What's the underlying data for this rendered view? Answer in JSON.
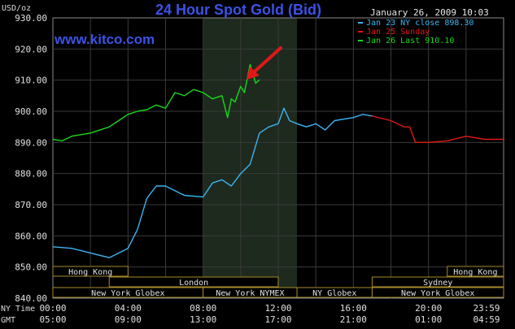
{
  "chart_data": {
    "type": "line",
    "title": "24 Hour Spot Gold (Bid)",
    "watermark": "www.kitco.com",
    "timestamp": "January 26, 2009 10:03",
    "ylabel": "USD/oz",
    "ylim": [
      840,
      930
    ],
    "y_ticks": [
      "930.00",
      "920.00",
      "910.00",
      "900.00",
      "890.00",
      "880.00",
      "870.00",
      "860.00",
      "850.00",
      "840.00"
    ],
    "x_rows": [
      {
        "label": "NY Time",
        "ticks": [
          "00:00",
          "04:00",
          "08:00",
          "12:00",
          "16:00",
          "20:00",
          "23:59"
        ]
      },
      {
        "label": "GMT",
        "ticks": [
          "05:00",
          "09:00",
          "13:00",
          "17:00",
          "21:00",
          "01:00",
          "04:59"
        ]
      }
    ],
    "legend": [
      {
        "text": "Jan 23 NY close 898.30",
        "color": "#3ab4f0"
      },
      {
        "text": "Jan 25 Sunday",
        "color": "#e01818"
      },
      {
        "text": "Jan 26 Last 910.10",
        "color": "#18d818"
      }
    ],
    "series": [
      {
        "name": "Jan 23 NY close 898.30",
        "color": "#3ab4f0",
        "x_hours": [
          0,
          1,
          2,
          3,
          4,
          4.5,
          5,
          5.5,
          6,
          7,
          8,
          8.5,
          9,
          9.5,
          10,
          10.5,
          11,
          11.5,
          12,
          12.3,
          12.6,
          13,
          13.5,
          14,
          14.5,
          15,
          16,
          16.5,
          17
        ],
        "values": [
          856.5,
          856,
          854.5,
          853,
          856,
          862,
          872,
          876,
          876,
          873,
          872.5,
          877,
          878,
          876,
          880,
          883,
          893,
          895,
          896,
          901,
          897,
          896,
          895,
          896,
          894,
          897,
          898,
          899,
          898.5
        ]
      },
      {
        "name": "Jan 25 Sunday",
        "color": "#e01818",
        "x_hours": [
          17,
          18,
          18.7,
          19,
          19.3,
          20,
          21,
          22,
          23,
          23.99
        ],
        "values": [
          898.5,
          897,
          895,
          895,
          890,
          890,
          890.5,
          892,
          891,
          891
        ]
      },
      {
        "name": "Jan 26 Last 910.10",
        "color": "#18d818",
        "x_hours": [
          0,
          0.5,
          1,
          2,
          3,
          3.5,
          4,
          4.5,
          5,
          5.5,
          6,
          6.5,
          7,
          7.5,
          8,
          8.5,
          9,
          9.3,
          9.5,
          9.7,
          10,
          10.2,
          10.5,
          10.8,
          11
        ],
        "values": [
          891,
          890.5,
          892,
          893,
          895,
          897,
          899,
          900,
          900.5,
          902,
          901,
          906,
          905,
          907,
          906,
          904,
          905,
          898,
          904,
          903,
          908,
          906,
          915,
          909,
          910.1
        ]
      }
    ],
    "highlight_x_hours": [
      8,
      13
    ],
    "sessions": [
      {
        "name": "Hong Kong",
        "start_hours": [
          0,
          21
        ]
      },
      {
        "name": "London",
        "start_hours": [
          3
        ]
      },
      {
        "name": "Sydney",
        "start_hours": [
          16.5
        ]
      },
      {
        "name": "New York Globex",
        "start_hours": [
          0,
          17
        ]
      },
      {
        "name": "New York NYMEX",
        "start_hours": [
          8.5
        ]
      },
      {
        "name": "NY Globex",
        "start_hours": [
          13.5
        ]
      }
    ],
    "session_bars": [
      {
        "label": "Hong Kong",
        "row": 1,
        "from": 0,
        "to": 4
      },
      {
        "label": "Hong Kong",
        "row": 1,
        "from": 21,
        "to": 24
      },
      {
        "label": "London",
        "row": 2,
        "from": 3,
        "to": 12
      },
      {
        "label": "Sydney",
        "row": 2,
        "from": 17,
        "to": 24
      },
      {
        "label": "New York Globex",
        "row": 3,
        "from": 0,
        "to": 8
      },
      {
        "label": "New York NYMEX",
        "row": 3,
        "from": 8,
        "to": 13
      },
      {
        "label": "NY Globex",
        "row": 3,
        "from": 13,
        "to": 17
      },
      {
        "label": "New York Globex",
        "row": 3,
        "from": 17,
        "to": 24
      }
    ],
    "annotation": {
      "type": "arrow",
      "color": "#e01818"
    }
  }
}
